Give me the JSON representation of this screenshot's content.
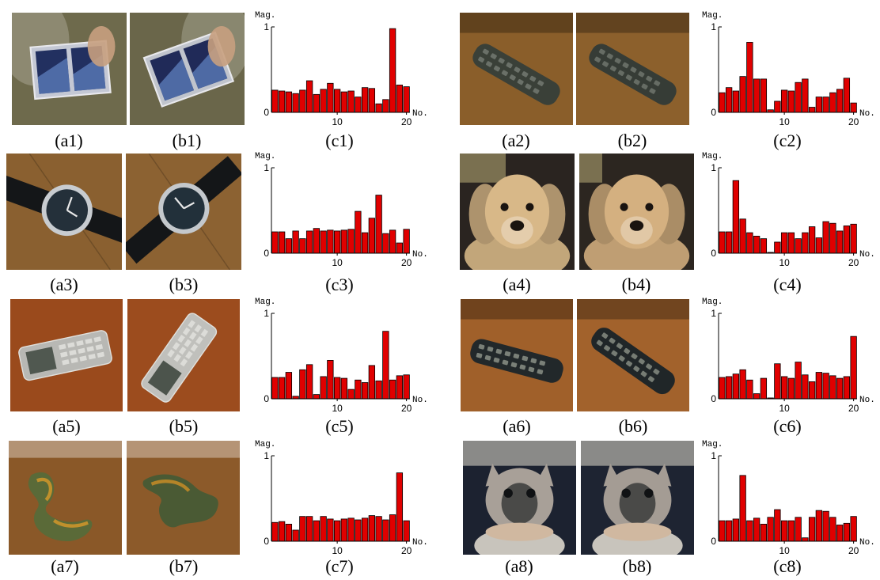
{
  "chart_data": [
    {
      "id": "c1",
      "type": "bar",
      "ylabel": "Mag.",
      "xlabel": "No.",
      "ylim": [
        0,
        1
      ],
      "xticks": [
        10,
        20
      ],
      "yticks": [
        0,
        1
      ],
      "x": [
        1,
        2,
        3,
        4,
        5,
        6,
        7,
        8,
        9,
        10,
        11,
        12,
        13,
        14,
        15,
        16,
        17,
        18,
        19,
        20
      ],
      "values": [
        0.26,
        0.25,
        0.24,
        0.22,
        0.26,
        0.37,
        0.21,
        0.27,
        0.34,
        0.27,
        0.24,
        0.25,
        0.18,
        0.29,
        0.28,
        0.1,
        0.15,
        0.98,
        0.32,
        0.3
      ],
      "color": "#e00000"
    },
    {
      "id": "c2",
      "type": "bar",
      "ylabel": "Mag.",
      "xlabel": "No.",
      "ylim": [
        0,
        1
      ],
      "xticks": [
        10,
        20
      ],
      "yticks": [
        0,
        1
      ],
      "x": [
        1,
        2,
        3,
        4,
        5,
        6,
        7,
        8,
        9,
        10,
        11,
        12,
        13,
        14,
        15,
        16,
        17,
        18,
        19,
        20
      ],
      "values": [
        0.23,
        0.29,
        0.25,
        0.42,
        0.82,
        0.39,
        0.39,
        0.03,
        0.13,
        0.26,
        0.25,
        0.35,
        0.39,
        0.06,
        0.18,
        0.18,
        0.23,
        0.27,
        0.4,
        0.11
      ],
      "color": "#e00000"
    },
    {
      "id": "c3",
      "type": "bar",
      "ylabel": "Mag.",
      "xlabel": "No.",
      "ylim": [
        0,
        1
      ],
      "xticks": [
        10,
        20
      ],
      "yticks": [
        0,
        1
      ],
      "x": [
        1,
        2,
        3,
        4,
        5,
        6,
        7,
        8,
        9,
        10,
        11,
        12,
        13,
        14,
        15,
        16,
        17,
        18,
        19,
        20
      ],
      "values": [
        0.25,
        0.25,
        0.17,
        0.26,
        0.17,
        0.26,
        0.29,
        0.26,
        0.27,
        0.26,
        0.27,
        0.28,
        0.49,
        0.24,
        0.41,
        0.68,
        0.23,
        0.27,
        0.12,
        0.28
      ],
      "color": "#e00000"
    },
    {
      "id": "c4",
      "type": "bar",
      "ylabel": "Mag.",
      "xlabel": "No.",
      "ylim": [
        0,
        1
      ],
      "xticks": [
        10,
        20
      ],
      "yticks": [
        0,
        1
      ],
      "x": [
        1,
        2,
        3,
        4,
        5,
        6,
        7,
        8,
        9,
        10,
        11,
        12,
        13,
        14,
        15,
        16,
        17,
        18,
        19,
        20
      ],
      "values": [
        0.25,
        0.25,
        0.85,
        0.4,
        0.24,
        0.2,
        0.17,
        0.01,
        0.13,
        0.24,
        0.24,
        0.17,
        0.24,
        0.31,
        0.18,
        0.37,
        0.35,
        0.26,
        0.32,
        0.34
      ],
      "color": "#e00000"
    },
    {
      "id": "c5",
      "type": "bar",
      "ylabel": "Mag.",
      "xlabel": "No.",
      "ylim": [
        0,
        1
      ],
      "xticks": [
        10,
        20
      ],
      "yticks": [
        0,
        1
      ],
      "x": [
        1,
        2,
        3,
        4,
        5,
        6,
        7,
        8,
        9,
        10,
        11,
        12,
        13,
        14,
        15,
        16,
        17,
        18,
        19,
        20
      ],
      "values": [
        0.25,
        0.25,
        0.31,
        0.03,
        0.34,
        0.4,
        0.05,
        0.26,
        0.45,
        0.25,
        0.24,
        0.11,
        0.22,
        0.19,
        0.39,
        0.21,
        0.79,
        0.22,
        0.27,
        0.28
      ],
      "color": "#e00000"
    },
    {
      "id": "c6",
      "type": "bar",
      "ylabel": "Mag.",
      "xlabel": "No.",
      "ylim": [
        0,
        1
      ],
      "xticks": [
        10,
        20
      ],
      "yticks": [
        0,
        1
      ],
      "x": [
        1,
        2,
        3,
        4,
        5,
        6,
        7,
        8,
        9,
        10,
        11,
        12,
        13,
        14,
        15,
        16,
        17,
        18,
        19,
        20
      ],
      "values": [
        0.25,
        0.26,
        0.29,
        0.34,
        0.22,
        0.06,
        0.24,
        0.01,
        0.41,
        0.26,
        0.24,
        0.43,
        0.28,
        0.2,
        0.31,
        0.3,
        0.27,
        0.24,
        0.26,
        0.73
      ],
      "color": "#e00000"
    },
    {
      "id": "c7",
      "type": "bar",
      "ylabel": "Mag.",
      "xlabel": "No.",
      "ylim": [
        0,
        1
      ],
      "xticks": [
        10,
        20
      ],
      "yticks": [
        0,
        1
      ],
      "x": [
        1,
        2,
        3,
        4,
        5,
        6,
        7,
        8,
        9,
        10,
        11,
        12,
        13,
        14,
        15,
        16,
        17,
        18,
        19,
        20
      ],
      "values": [
        0.22,
        0.23,
        0.2,
        0.13,
        0.29,
        0.29,
        0.24,
        0.29,
        0.26,
        0.24,
        0.26,
        0.27,
        0.25,
        0.27,
        0.3,
        0.29,
        0.25,
        0.31,
        0.8,
        0.24
      ],
      "color": "#e00000"
    },
    {
      "id": "c8",
      "type": "bar",
      "ylabel": "Mag.",
      "xlabel": "No.",
      "ylim": [
        0,
        1
      ],
      "xticks": [
        10,
        20
      ],
      "yticks": [
        0,
        1
      ],
      "x": [
        1,
        2,
        3,
        4,
        5,
        6,
        7,
        8,
        9,
        10,
        11,
        12,
        13,
        14,
        15,
        16,
        17,
        18,
        19,
        20
      ],
      "values": [
        0.24,
        0.24,
        0.26,
        0.77,
        0.24,
        0.27,
        0.2,
        0.28,
        0.37,
        0.24,
        0.24,
        0.28,
        0.04,
        0.28,
        0.36,
        0.35,
        0.28,
        0.19,
        0.21,
        0.29
      ],
      "color": "#e00000"
    }
  ],
  "captions": {
    "a1": "(a1)",
    "b1": "(b1)",
    "c1": "(c1)",
    "a2": "(a2)",
    "b2": "(b2)",
    "c2": "(c2)",
    "a3": "(a3)",
    "b3": "(b3)",
    "c3": "(c3)",
    "a4": "(a4)",
    "b4": "(b4)",
    "c4": "(c4)",
    "a5": "(a5)",
    "b5": "(b5)",
    "c5": "(c5)",
    "a6": "(a6)",
    "b6": "(b6)",
    "c6": "(c6)",
    "a7": "(a7)",
    "b7": "(b7)",
    "c7": "(c7)",
    "a8": "(a8)",
    "b8": "(b8)",
    "c8": "(c8)"
  },
  "photos": [
    {
      "id": "a1",
      "subject": "card-holder",
      "colors": {
        "bg": "#6e6a4c",
        "main": "#c4c8d4",
        "accent": "#223060"
      }
    },
    {
      "id": "b1",
      "subject": "card-holder",
      "colors": {
        "bg": "#6a664a",
        "main": "#c0c4cc",
        "accent": "#202a58"
      }
    },
    {
      "id": "a2",
      "subject": "remote-control",
      "colors": {
        "bg": "#8a5e2a",
        "main": "#3a4038",
        "accent": "#6a7068"
      }
    },
    {
      "id": "b2",
      "subject": "remote-control",
      "colors": {
        "bg": "#8c602c",
        "main": "#363c36",
        "accent": "#666c64"
      }
    },
    {
      "id": "a3",
      "subject": "wristwatch",
      "colors": {
        "bg": "#8a6030",
        "main": "#24303a",
        "accent": "#c8ccd0"
      }
    },
    {
      "id": "b3",
      "subject": "wristwatch",
      "colors": {
        "bg": "#8c6232",
        "main": "#22303a",
        "accent": "#c4c8cc"
      }
    },
    {
      "id": "a4",
      "subject": "dog",
      "colors": {
        "bg": "#2a2420",
        "main": "#d8b888",
        "accent": "#1a1410"
      }
    },
    {
      "id": "b4",
      "subject": "dog",
      "colors": {
        "bg": "#2c2620",
        "main": "#d4b080",
        "accent": "#1a1410"
      }
    },
    {
      "id": "a5",
      "subject": "mobile-phone",
      "colors": {
        "bg": "#9a4a1c",
        "main": "#b8b8b4",
        "accent": "#505850"
      }
    },
    {
      "id": "b5",
      "subject": "mobile-phone",
      "colors": {
        "bg": "#9c4c1e",
        "main": "#c0c0bc",
        "accent": "#4c544c"
      }
    },
    {
      "id": "a6",
      "subject": "remote-control",
      "colors": {
        "bg": "#a0602a",
        "main": "#22282a",
        "accent": "#7a8078"
      }
    },
    {
      "id": "b6",
      "subject": "remote-control",
      "colors": {
        "bg": "#a2622c",
        "main": "#202628",
        "accent": "#767c74"
      }
    },
    {
      "id": "a7",
      "subject": "toy",
      "colors": {
        "bg": "#8a5828",
        "main": "#5a6a38",
        "accent": "#c0902c"
      }
    },
    {
      "id": "b7",
      "subject": "toy",
      "colors": {
        "bg": "#8c5a2a",
        "main": "#4a5a34",
        "accent": "#b48428"
      }
    },
    {
      "id": "a8",
      "subject": "cat",
      "colors": {
        "bg": "#1c2230",
        "main": "#a8a098",
        "accent": "#2a2c30"
      }
    },
    {
      "id": "b8",
      "subject": "cat",
      "colors": {
        "bg": "#1e2432",
        "main": "#a49c94",
        "accent": "#282a2e"
      }
    }
  ]
}
